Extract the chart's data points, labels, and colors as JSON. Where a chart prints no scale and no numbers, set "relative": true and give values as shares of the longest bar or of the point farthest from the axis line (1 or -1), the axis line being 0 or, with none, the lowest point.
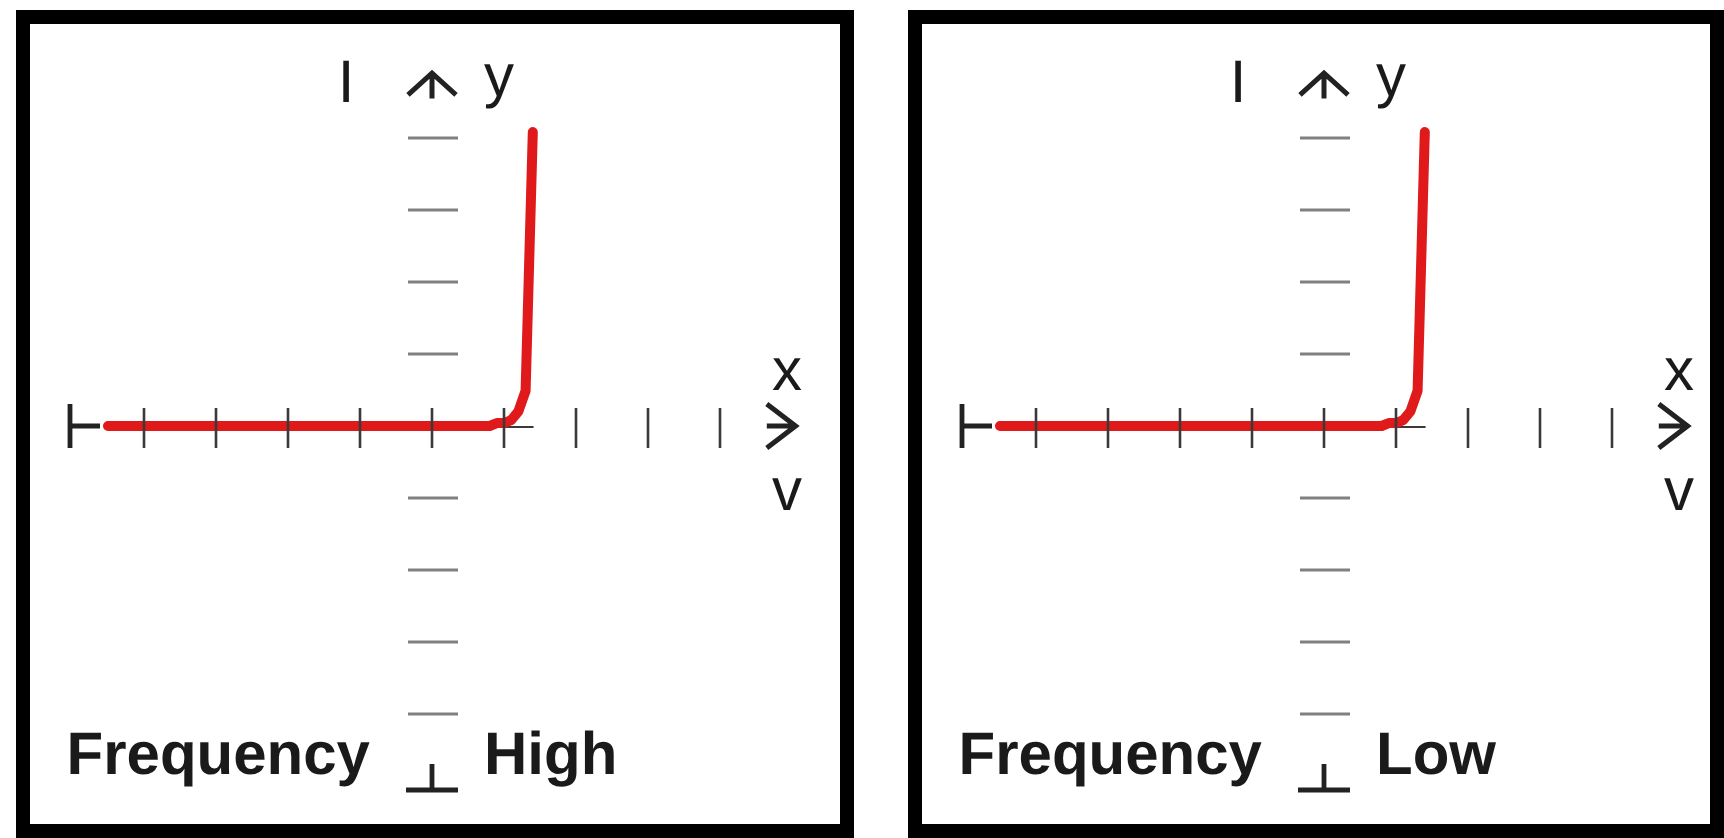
{
  "chart_data": [
    {
      "type": "line",
      "title": "Frequency",
      "subtitle": "High",
      "xlabel": "v",
      "ylabel": "I",
      "annotations": [
        "y",
        "x"
      ],
      "relative": true,
      "categories": [
        null,
        null,
        null,
        null,
        null,
        null,
        null,
        null,
        null,
        null,
        null,
        null,
        null,
        null,
        null,
        null,
        null,
        null,
        null,
        null,
        null,
        null,
        null,
        null,
        null,
        null,
        null,
        null,
        null,
        null,
        null,
        null,
        null,
        null,
        null,
        null,
        null,
        null,
        null,
        null,
        null,
        null,
        null,
        null,
        null,
        null,
        null,
        null,
        null,
        null,
        null,
        null,
        null,
        null,
        null,
        null,
        null,
        null,
        null,
        null
      ],
      "series": [
        {
          "color": "#e0191b",
          "values": [
            0,
            0,
            0,
            0,
            0,
            0,
            0,
            0,
            0,
            0,
            0,
            0,
            0,
            0,
            0,
            0,
            0,
            0,
            0,
            0,
            0,
            0,
            0,
            0,
            0,
            0,
            0,
            0,
            0,
            0,
            0,
            0,
            0,
            0,
            0,
            0,
            0,
            0,
            0,
            0,
            0,
            0,
            0,
            0,
            0,
            0,
            0,
            0,
            0,
            0,
            0,
            0,
            0,
            0,
            0.01,
            0.01,
            0.02,
            0.05,
            0.12,
            1
          ]
        }
      ]
    },
    {
      "type": "line",
      "title": "Frequency",
      "subtitle": "Low",
      "xlabel": "v",
      "ylabel": "I",
      "annotations": [
        "y",
        "x"
      ],
      "relative": true,
      "categories": [
        null,
        null,
        null,
        null,
        null,
        null,
        null,
        null,
        null,
        null,
        null,
        null,
        null,
        null,
        null,
        null,
        null,
        null,
        null,
        null,
        null,
        null,
        null,
        null,
        null,
        null,
        null,
        null,
        null,
        null,
        null,
        null,
        null,
        null,
        null,
        null,
        null,
        null,
        null,
        null,
        null,
        null,
        null,
        null,
        null,
        null,
        null,
        null,
        null,
        null,
        null,
        null,
        null,
        null,
        null,
        null,
        null,
        null,
        null,
        null
      ],
      "series": [
        {
          "color": "#e0191b",
          "values": [
            0,
            0,
            0,
            0,
            0,
            0,
            0,
            0,
            0,
            0,
            0,
            0,
            0,
            0,
            0,
            0,
            0,
            0,
            0,
            0,
            0,
            0,
            0,
            0,
            0,
            0,
            0,
            0,
            0,
            0,
            0,
            0,
            0,
            0,
            0,
            0,
            0,
            0,
            0,
            0,
            0,
            0,
            0,
            0,
            0,
            0,
            0,
            0,
            0,
            0,
            0,
            0,
            0,
            0,
            0.01,
            0.01,
            0.02,
            0.05,
            0.12,
            1
          ]
        }
      ]
    }
  ]
}
